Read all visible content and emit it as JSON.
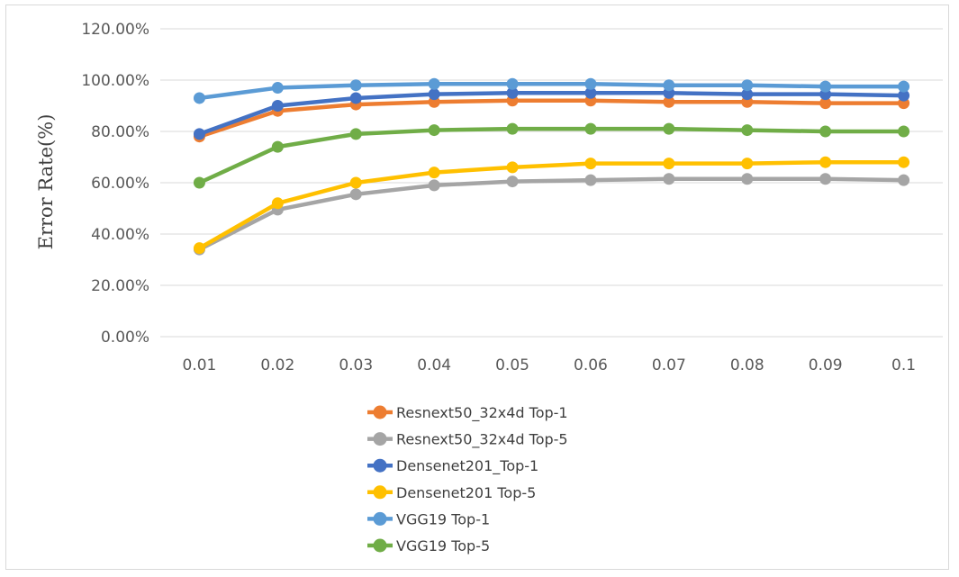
{
  "chart_data": {
    "type": "line",
    "title": "",
    "xlabel": "",
    "ylabel": "Error Rate(%)",
    "x": [
      "0.01",
      "0.02",
      "0.03",
      "0.04",
      "0.05",
      "0.06",
      "0.07",
      "0.08",
      "0.09",
      "0.1"
    ],
    "yticks": [
      "0.00%",
      "20.00%",
      "40.00%",
      "60.00%",
      "80.00%",
      "100.00%",
      "120.00%"
    ],
    "ylim": [
      0,
      120
    ],
    "grid": true,
    "legend_position": "bottom",
    "series": [
      {
        "name": "Resnext50_32x4d Top-1",
        "color": "#ed7d31",
        "values": [
          78,
          88,
          90.5,
          91.5,
          92,
          92,
          91.5,
          91.5,
          91,
          91
        ]
      },
      {
        "name": "Resnext50_32x4d Top-5",
        "color": "#a5a5a5",
        "values": [
          34,
          49.5,
          55.5,
          59,
          60.5,
          61,
          61.5,
          61.5,
          61.5,
          61
        ]
      },
      {
        "name": "Densenet201_Top-1",
        "color": "#4472c4",
        "values": [
          79,
          90,
          93,
          94.5,
          95,
          95,
          95,
          94.5,
          94.5,
          94
        ]
      },
      {
        "name": "Densenet201 Top-5",
        "color": "#ffc000",
        "values": [
          34.5,
          52,
          60,
          64,
          66,
          67.5,
          67.5,
          67.5,
          68,
          68
        ]
      },
      {
        "name": "VGG19 Top-1",
        "color": "#5b9bd5",
        "values": [
          93,
          97,
          98,
          98.5,
          98.5,
          98.5,
          98,
          98,
          97.5,
          97.5
        ]
      },
      {
        "name": "VGG19 Top-5",
        "color": "#70ad47",
        "values": [
          60,
          74,
          79,
          80.5,
          81,
          81,
          81,
          80.5,
          80,
          80
        ]
      }
    ]
  }
}
